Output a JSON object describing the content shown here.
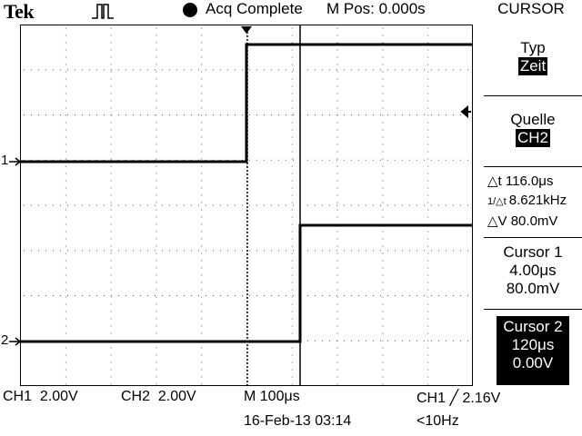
{
  "header": {
    "brand": "Tek",
    "trigger_symbol_icon": "pulse-icon",
    "acq_status": "Acq Complete",
    "m_pos": "M Pos: 0.000s",
    "menu_title": "CURSOR"
  },
  "side_menu": {
    "typ_label": "Typ",
    "typ_value": "Zeit",
    "quelle_label": "Quelle",
    "quelle_value": "CH2",
    "delta_t": "116.0μs",
    "inv_delta_t": "8.621kHz",
    "delta_v": "80.0mV",
    "cursor1_label": "Cursor 1",
    "cursor1_time": "4.00μs",
    "cursor1_volt": "80.0mV",
    "cursor2_label": "Cursor 2",
    "cursor2_time": "120μs",
    "cursor2_volt": "0.00V"
  },
  "footer": {
    "ch1": "CH1  2.00V",
    "ch2": "CH2  2.00V",
    "timebase": "M 100μs",
    "trigger": "CH1 ╱ 2.16V",
    "date": "16-Feb-13 03:14",
    "freq": "<10Hz"
  },
  "channels": {
    "ch1_marker": "1",
    "ch2_marker": "2"
  },
  "colors": {
    "trace": "#000000",
    "background": "#ffffff"
  }
}
